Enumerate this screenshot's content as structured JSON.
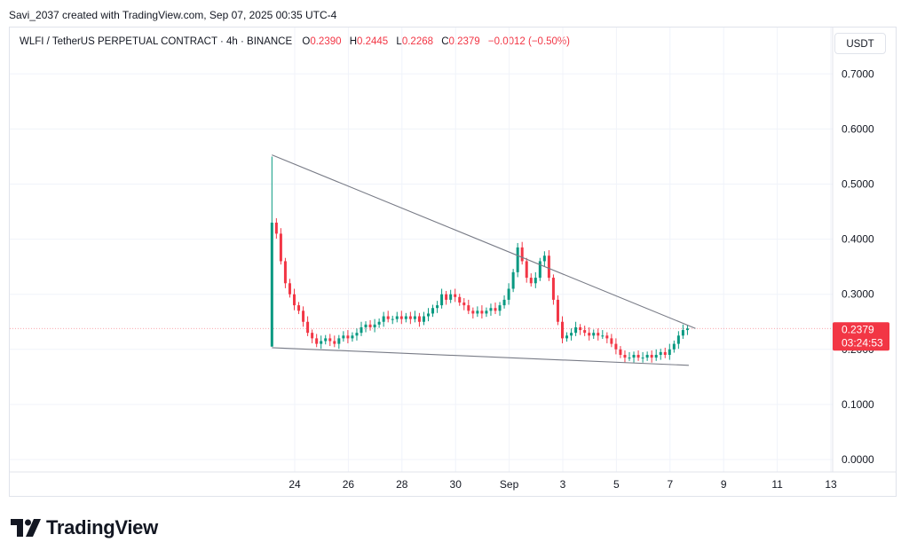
{
  "header": {
    "credit": "Savi_2037 created with TradingView.com, Sep 07, 2025 00:35 UTC-4"
  },
  "legend": {
    "symbol": "WLFI / TetherUS PERPETUAL CONTRACT · 4h · BINANCE",
    "o_label": "O",
    "o_value": "0.2390",
    "h_label": "H",
    "h_value": "0.2445",
    "l_label": "L",
    "l_value": "0.2268",
    "c_label": "C",
    "c_value": "0.2379",
    "change": "−0.0012 (−0.50%)"
  },
  "price_scale": {
    "unit_button": "USDT",
    "last_price": "0.2379",
    "countdown": "03:24:53"
  },
  "brand": {
    "logo_word": "TradingView"
  },
  "colors": {
    "up": "#089981",
    "down": "#f23645",
    "line": "#787b86"
  },
  "chart_data": {
    "type": "candlestick",
    "y_ticks": [
      "0.0000",
      "0.1000",
      "0.2000",
      "0.3000",
      "0.4000",
      "0.5000",
      "0.6000",
      "0.7000"
    ],
    "x_ticks": [
      {
        "day": 24,
        "label": "24"
      },
      {
        "day": 26,
        "label": "26"
      },
      {
        "day": 28,
        "label": "28"
      },
      {
        "day": 30,
        "label": "30"
      },
      {
        "day": 32,
        "label": "Sep"
      },
      {
        "day": 34,
        "label": "3"
      },
      {
        "day": 36,
        "label": "5"
      },
      {
        "day": 38,
        "label": "7"
      },
      {
        "day": 40,
        "label": "9"
      },
      {
        "day": 42,
        "label": "11"
      },
      {
        "day": 44,
        "label": "13"
      }
    ],
    "ylim": [
      0,
      0.72
    ],
    "first_candle": {
      "day": 23.15,
      "open": 0.205,
      "high": 0.55,
      "low": 0.205,
      "close": 0.43
    },
    "closes": [
      0.43,
      0.41,
      0.36,
      0.32,
      0.3,
      0.28,
      0.27,
      0.25,
      0.23,
      0.22,
      0.21,
      0.215,
      0.22,
      0.215,
      0.21,
      0.22,
      0.225,
      0.22,
      0.225,
      0.23,
      0.24,
      0.245,
      0.24,
      0.245,
      0.25,
      0.26,
      0.255,
      0.255,
      0.26,
      0.255,
      0.26,
      0.255,
      0.26,
      0.25,
      0.26,
      0.265,
      0.275,
      0.28,
      0.3,
      0.29,
      0.3,
      0.295,
      0.285,
      0.28,
      0.27,
      0.265,
      0.27,
      0.265,
      0.27,
      0.275,
      0.27,
      0.28,
      0.29,
      0.31,
      0.34,
      0.385,
      0.36,
      0.33,
      0.32,
      0.33,
      0.36,
      0.37,
      0.33,
      0.29,
      0.25,
      0.22,
      0.225,
      0.23,
      0.24,
      0.235,
      0.23,
      0.225,
      0.23,
      0.225,
      0.225,
      0.22,
      0.21,
      0.2,
      0.19,
      0.185,
      0.185,
      0.19,
      0.185,
      0.185,
      0.19,
      0.185,
      0.19,
      0.195,
      0.19,
      0.2,
      0.21,
      0.225,
      0.235,
      0.2379
    ],
    "patterns": [
      {
        "name": "upper-trendline",
        "from": {
          "day": 23.15,
          "price": 0.553
        },
        "to": {
          "day": 38.95,
          "price": 0.238
        }
      },
      {
        "name": "lower-trendline",
        "from": {
          "day": 23.15,
          "price": 0.203
        },
        "to": {
          "day": 38.7,
          "price": 0.171
        }
      }
    ]
  }
}
